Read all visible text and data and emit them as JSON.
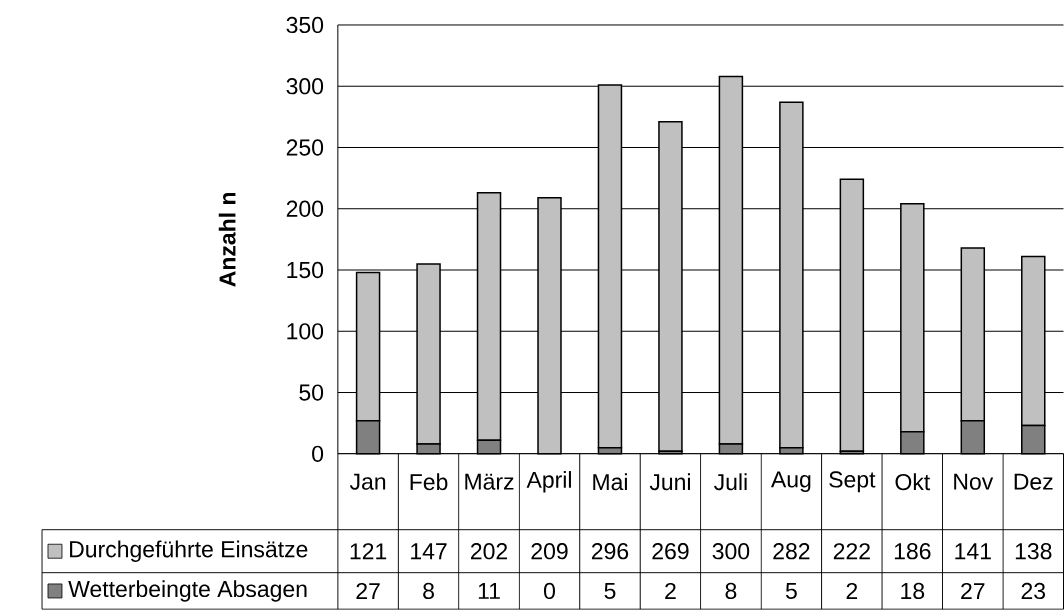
{
  "chart_data": {
    "type": "bar",
    "stacked": true,
    "ylabel": "Anzahl n",
    "categories": [
      "Jan",
      "Feb",
      "März",
      "April",
      "Mai",
      "Juni",
      "Juli",
      "Aug",
      "Sept",
      "Okt",
      "Nov",
      "Dez"
    ],
    "series": [
      {
        "name": "Wetterbeingte Absagen",
        "color": "#808080",
        "values": [
          27,
          8,
          11,
          0,
          5,
          2,
          8,
          5,
          2,
          18,
          27,
          23
        ]
      },
      {
        "name": "Durchgeführte Einsätze",
        "color": "#c0c0c0",
        "values": [
          121,
          147,
          202,
          209,
          296,
          269,
          300,
          282,
          222,
          186,
          141,
          138
        ]
      }
    ],
    "ylim": [
      0,
      350
    ],
    "yticks": [
      0,
      50,
      100,
      150,
      200,
      250,
      300,
      350
    ],
    "grid": "y",
    "legend": "bottom",
    "data_labels": true
  }
}
